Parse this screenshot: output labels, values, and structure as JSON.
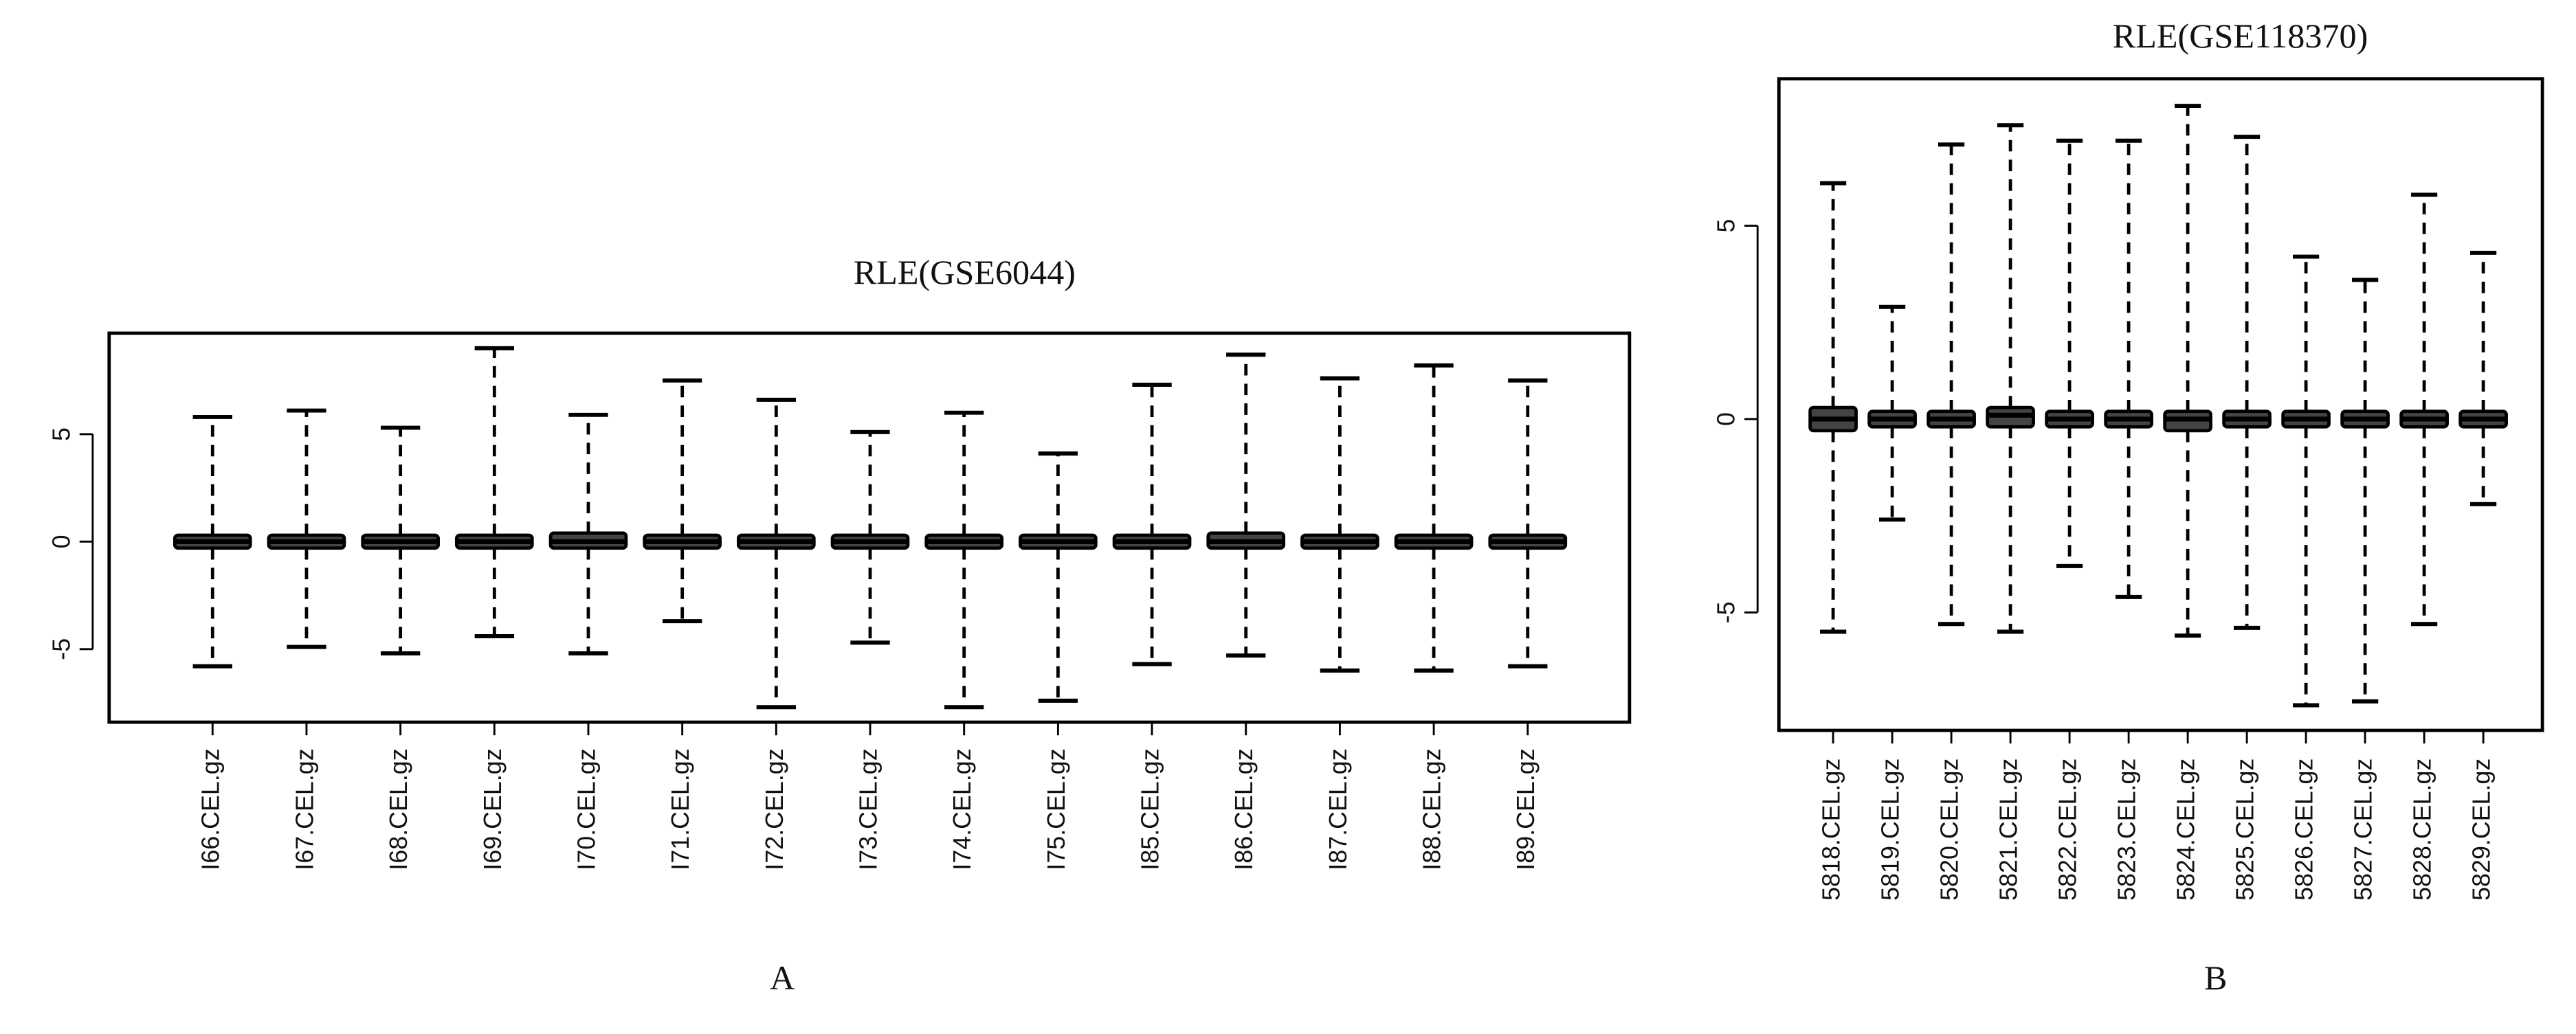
{
  "chart_data": [
    {
      "type": "box",
      "title": "RLE(GSE6044)",
      "caption": "A",
      "categories": [
        "I66.CEL.gz",
        "I67.CEL.gz",
        "I68.CEL.gz",
        "I69.CEL.gz",
        "I70.CEL.gz",
        "I71.CEL.gz",
        "I72.CEL.gz",
        "I73.CEL.gz",
        "I74.CEL.gz",
        "I75.CEL.gz",
        "I85.CEL.gz",
        "I86.CEL.gz",
        "I87.CEL.gz",
        "I88.CEL.gz",
        "I89.CEL.gz"
      ],
      "boxes": [
        {
          "min": -5.8,
          "q1": -0.3,
          "median": 0,
          "q3": 0.3,
          "max": 5.8
        },
        {
          "min": -4.9,
          "q1": -0.3,
          "median": 0,
          "q3": 0.3,
          "max": 6.1
        },
        {
          "min": -5.2,
          "q1": -0.3,
          "median": 0,
          "q3": 0.3,
          "max": 5.3
        },
        {
          "min": -4.4,
          "q1": -0.3,
          "median": 0,
          "q3": 0.3,
          "max": 9.0
        },
        {
          "min": -5.2,
          "q1": -0.3,
          "median": 0,
          "q3": 0.4,
          "max": 5.9
        },
        {
          "min": -3.7,
          "q1": -0.3,
          "median": 0,
          "q3": 0.3,
          "max": 7.5
        },
        {
          "min": -7.7,
          "q1": -0.3,
          "median": 0,
          "q3": 0.3,
          "max": 6.6
        },
        {
          "min": -4.7,
          "q1": -0.3,
          "median": 0,
          "q3": 0.3,
          "max": 5.1
        },
        {
          "min": -7.7,
          "q1": -0.3,
          "median": 0,
          "q3": 0.3,
          "max": 6.0
        },
        {
          "min": -7.4,
          "q1": -0.3,
          "median": 0,
          "q3": 0.3,
          "max": 4.1
        },
        {
          "min": -5.7,
          "q1": -0.3,
          "median": 0,
          "q3": 0.3,
          "max": 7.3
        },
        {
          "min": -5.3,
          "q1": -0.3,
          "median": 0,
          "q3": 0.4,
          "max": 8.7
        },
        {
          "min": -6.0,
          "q1": -0.3,
          "median": 0,
          "q3": 0.3,
          "max": 7.6
        },
        {
          "min": -6.0,
          "q1": -0.3,
          "median": 0,
          "q3": 0.3,
          "max": 8.2
        },
        {
          "min": -5.8,
          "q1": -0.3,
          "median": 0,
          "q3": 0.3,
          "max": 7.5
        }
      ],
      "color": "#000000",
      "ylim": [
        -8.4,
        9.7
      ],
      "yticks": [
        -5,
        0,
        5
      ]
    },
    {
      "type": "box",
      "title": "RLE(GSE118370)",
      "caption": "B",
      "categories": [
        "5818.CEL.gz",
        "5819.CEL.gz",
        "5820.CEL.gz",
        "5821.CEL.gz",
        "5822.CEL.gz",
        "5823.CEL.gz",
        "5824.CEL.gz",
        "5825.CEL.gz",
        "5826.CEL.gz",
        "5827.CEL.gz",
        "5828.CEL.gz",
        "5829.CEL.gz"
      ],
      "boxes": [
        {
          "min": -5.5,
          "q1": -0.3,
          "median": 0,
          "q3": 0.3,
          "max": 6.1
        },
        {
          "min": -2.6,
          "q1": -0.2,
          "median": 0,
          "q3": 0.2,
          "max": 2.9
        },
        {
          "min": -5.3,
          "q1": -0.2,
          "median": 0,
          "q3": 0.2,
          "max": 7.1
        },
        {
          "min": -5.5,
          "q1": -0.2,
          "median": 0.1,
          "q3": 0.3,
          "max": 7.6
        },
        {
          "min": -3.8,
          "q1": -0.2,
          "median": 0,
          "q3": 0.2,
          "max": 7.2
        },
        {
          "min": -4.6,
          "q1": -0.2,
          "median": 0,
          "q3": 0.2,
          "max": 7.2
        },
        {
          "min": -5.6,
          "q1": -0.3,
          "median": 0,
          "q3": 0.2,
          "max": 8.1
        },
        {
          "min": -5.4,
          "q1": -0.2,
          "median": 0,
          "q3": 0.2,
          "max": 7.3
        },
        {
          "min": -7.4,
          "q1": -0.2,
          "median": 0,
          "q3": 0.2,
          "max": 4.2
        },
        {
          "min": -7.3,
          "q1": -0.2,
          "median": 0,
          "q3": 0.2,
          "max": 3.6
        },
        {
          "min": -5.3,
          "q1": -0.2,
          "median": 0,
          "q3": 0.2,
          "max": 5.8
        },
        {
          "min": -2.2,
          "q1": -0.2,
          "median": 0,
          "q3": 0.2,
          "max": 4.3
        }
      ],
      "color": "#000000",
      "ylim": [
        -8.05,
        8.8
      ],
      "yticks": [
        -5,
        0,
        5
      ]
    }
  ]
}
